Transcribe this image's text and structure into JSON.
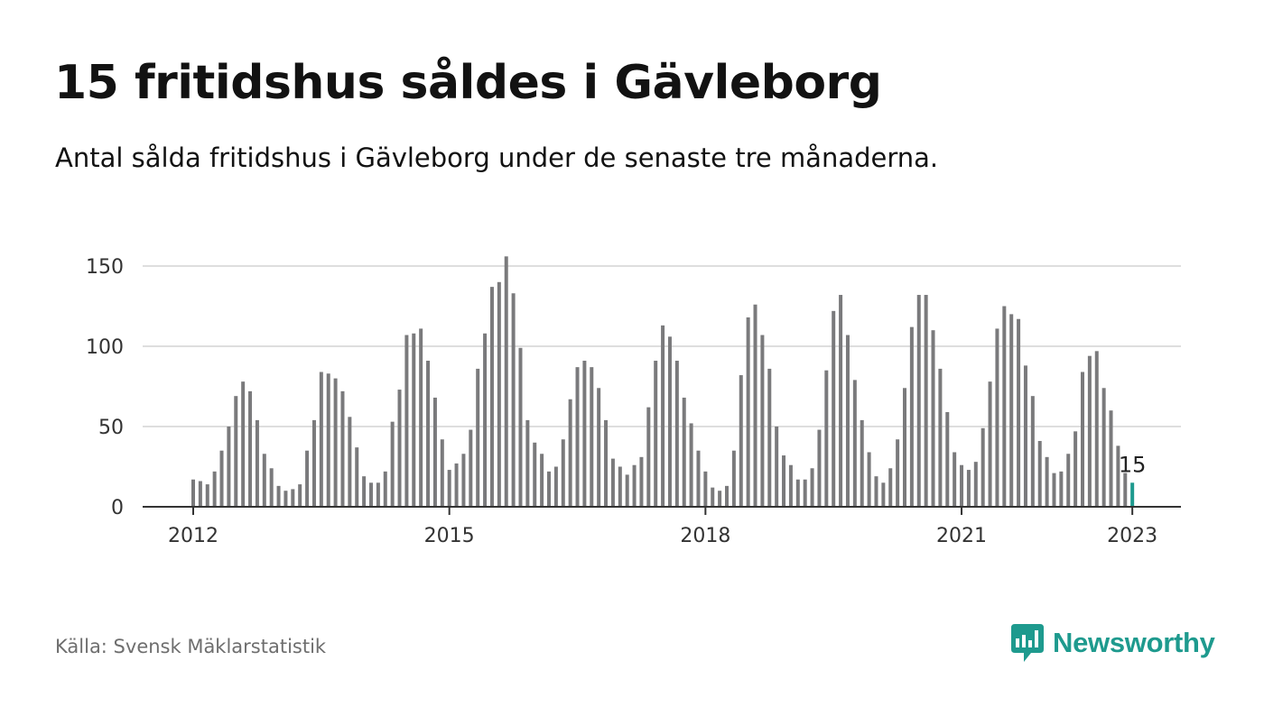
{
  "title": "15 fritidshus såldes i Gävleborg",
  "subtitle": "Antal sålda fritidshus i Gävleborg under de senaste tre månaderna.",
  "source": "Källa: Svensk Mäklarstatistik",
  "brand": {
    "name": "Newsworthy",
    "icon": "newsworthy-chart-bubble-icon",
    "color": "#1e9a8e"
  },
  "colors": {
    "bar": "#7a7a7c",
    "highlight": "#1e9a8e",
    "grid": "#dedede",
    "axis": "#333333"
  },
  "chart_data": {
    "type": "bar",
    "ylim": [
      0,
      150
    ],
    "yticks": [
      0,
      50,
      100,
      150
    ],
    "xticks": [
      "2012",
      "2015",
      "2018",
      "2021",
      "2023"
    ],
    "grid": true,
    "highlight_label": "15",
    "start": "2012-01",
    "frequency": "monthly",
    "values": [
      17,
      16,
      14,
      22,
      35,
      50,
      69,
      78,
      72,
      54,
      33,
      24,
      13,
      10,
      11,
      14,
      35,
      54,
      84,
      83,
      80,
      72,
      56,
      37,
      19,
      15,
      15,
      22,
      53,
      73,
      107,
      108,
      111,
      91,
      68,
      42,
      23,
      27,
      33,
      48,
      86,
      108,
      137,
      140,
      156,
      133,
      99,
      54,
      40,
      33,
      22,
      25,
      42,
      67,
      87,
      91,
      87,
      74,
      54,
      30,
      25,
      20,
      26,
      31,
      62,
      91,
      113,
      106,
      91,
      68,
      52,
      35,
      22,
      12,
      10,
      13,
      35,
      82,
      118,
      126,
      107,
      86,
      50,
      32,
      26,
      17,
      17,
      24,
      48,
      85,
      122,
      132,
      107,
      79,
      54,
      34,
      19,
      15,
      24,
      42,
      74,
      112,
      132,
      132,
      110,
      86,
      59,
      34,
      26,
      23,
      28,
      49,
      78,
      111,
      125,
      120,
      117,
      88,
      69,
      41,
      31,
      21,
      22,
      33,
      47,
      84,
      94,
      97,
      74,
      60,
      38,
      21,
      15
    ]
  }
}
